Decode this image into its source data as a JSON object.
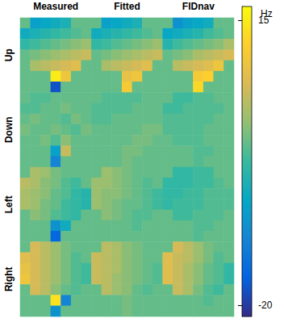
{
  "chart_data": {
    "type": "heatmap",
    "columns": [
      "Measured",
      "Fitted",
      "FIDnav"
    ],
    "rows": [
      "Up",
      "Down",
      "Left",
      "Right"
    ],
    "panels": [
      [
        [
          [
            0,
            -8,
            -7,
            -6,
            -5,
            0,
            0
          ],
          [
            -6,
            -5,
            -4,
            -3,
            -2,
            -1,
            0
          ],
          [
            -3,
            -2,
            -1,
            0,
            1,
            2,
            3
          ],
          [
            0,
            1,
            2,
            3,
            4,
            5,
            6
          ],
          [
            0,
            4,
            5,
            6,
            7,
            8,
            0
          ],
          [
            0,
            0,
            0,
            15,
            10,
            0,
            0
          ],
          [
            0,
            0,
            0,
            -18,
            0,
            0,
            0
          ]
        ],
        [
          [
            0,
            -8,
            -7,
            -6,
            -5,
            0,
            0
          ],
          [
            -6,
            -5,
            -4,
            -3,
            -2,
            -1,
            0
          ],
          [
            -3,
            -2,
            -1,
            0,
            1,
            2,
            3
          ],
          [
            0,
            1,
            2,
            3,
            4,
            5,
            6
          ],
          [
            0,
            4,
            5,
            6,
            7,
            8,
            0
          ],
          [
            0,
            0,
            0,
            9,
            10,
            0,
            0
          ],
          [
            0,
            0,
            0,
            11,
            0,
            0,
            0
          ]
        ],
        [
          [
            0,
            -10,
            -8,
            -7,
            -6,
            0,
            0
          ],
          [
            -7,
            -6,
            -5,
            -4,
            -2,
            -1,
            0
          ],
          [
            -4,
            -2,
            -1,
            0,
            1,
            2,
            4
          ],
          [
            0,
            1,
            2,
            4,
            5,
            6,
            7
          ],
          [
            0,
            5,
            6,
            7,
            8,
            10,
            0
          ],
          [
            0,
            0,
            0,
            11,
            12,
            0,
            0
          ],
          [
            0,
            0,
            0,
            13,
            0,
            0,
            0
          ]
        ]
      ],
      [
        [
          [
            0,
            -1,
            -1,
            0,
            0,
            0,
            0
          ],
          [
            -1,
            -1,
            0,
            0,
            1,
            0,
            0
          ],
          [
            0,
            1,
            0,
            0,
            -1,
            1,
            0
          ],
          [
            1,
            0,
            0,
            1,
            0,
            -1,
            1
          ],
          [
            0,
            0,
            1,
            -1,
            2,
            0,
            0
          ],
          [
            0,
            0,
            0,
            -8,
            6,
            0,
            0
          ],
          [
            0,
            0,
            0,
            -12,
            0,
            0,
            0
          ]
        ],
        [
          [
            0,
            -1,
            -1,
            -1,
            -1,
            0,
            0
          ],
          [
            -1,
            -1,
            -1,
            -1,
            0,
            0,
            0
          ],
          [
            -1,
            -1,
            0,
            0,
            0,
            0,
            0
          ],
          [
            0,
            0,
            0,
            0,
            0,
            1,
            1
          ],
          [
            0,
            0,
            0,
            0,
            1,
            1,
            0
          ],
          [
            0,
            0,
            0,
            1,
            1,
            0,
            0
          ],
          [
            0,
            0,
            0,
            1,
            0,
            0,
            0
          ]
        ],
        [
          [
            0,
            -2,
            -2,
            -1,
            -1,
            0,
            0
          ],
          [
            -2,
            -2,
            -1,
            -1,
            -1,
            -1,
            0
          ],
          [
            -1,
            -1,
            -1,
            -1,
            -1,
            0,
            0
          ],
          [
            -1,
            -1,
            -1,
            -1,
            0,
            0,
            0
          ],
          [
            0,
            -1,
            -1,
            -1,
            0,
            0,
            0
          ],
          [
            0,
            0,
            0,
            -1,
            -1,
            0,
            0
          ],
          [
            0,
            0,
            0,
            -1,
            0,
            0,
            0
          ]
        ]
      ],
      [
        [
          [
            0,
            4,
            3,
            1,
            0,
            0,
            0
          ],
          [
            5,
            4,
            2,
            1,
            -1,
            -2,
            0
          ],
          [
            4,
            3,
            2,
            0,
            -1,
            -3,
            -4
          ],
          [
            4,
            3,
            1,
            0,
            -2,
            -3,
            -4
          ],
          [
            0,
            2,
            1,
            -1,
            -2,
            -3,
            0
          ],
          [
            0,
            0,
            0,
            -10,
            -6,
            0,
            0
          ],
          [
            0,
            0,
            0,
            -16,
            0,
            0,
            0
          ]
        ],
        [
          [
            0,
            3,
            2,
            1,
            0,
            0,
            0
          ],
          [
            3,
            3,
            2,
            1,
            0,
            -1,
            0
          ],
          [
            3,
            2,
            2,
            1,
            0,
            -1,
            -2
          ],
          [
            3,
            2,
            1,
            0,
            0,
            -1,
            -2
          ],
          [
            0,
            2,
            1,
            0,
            -1,
            -1,
            0
          ],
          [
            0,
            0,
            0,
            0,
            -1,
            0,
            0
          ],
          [
            0,
            0,
            0,
            0,
            0,
            0,
            0
          ]
        ],
        [
          [
            0,
            -3,
            -3,
            -2,
            -2,
            0,
            0
          ],
          [
            -3,
            -3,
            -3,
            -2,
            -2,
            -1,
            0
          ],
          [
            -3,
            -3,
            -2,
            -2,
            -1,
            -1,
            -1
          ],
          [
            -3,
            -2,
            -2,
            -2,
            -1,
            -1,
            -1
          ],
          [
            0,
            -2,
            -2,
            -1,
            -1,
            -1,
            0
          ],
          [
            0,
            0,
            0,
            -1,
            -1,
            0,
            0
          ],
          [
            0,
            0,
            0,
            -1,
            0,
            0,
            0
          ]
        ]
      ],
      [
        [
          [
            0,
            7,
            5,
            3,
            1,
            0,
            0
          ],
          [
            8,
            7,
            5,
            3,
            1,
            -1,
            0
          ],
          [
            9,
            7,
            5,
            3,
            1,
            -1,
            -2
          ],
          [
            10,
            7,
            5,
            3,
            1,
            -1,
            -2
          ],
          [
            0,
            7,
            5,
            2,
            0,
            -1,
            0
          ],
          [
            0,
            0,
            0,
            14,
            -12,
            0,
            0
          ],
          [
            0,
            0,
            0,
            -10,
            0,
            0,
            0
          ]
        ],
        [
          [
            0,
            5,
            4,
            2,
            1,
            0,
            0
          ],
          [
            6,
            5,
            4,
            2,
            1,
            0,
            0
          ],
          [
            6,
            5,
            4,
            2,
            1,
            0,
            -1
          ],
          [
            6,
            5,
            3,
            2,
            1,
            0,
            -1
          ],
          [
            0,
            5,
            3,
            2,
            0,
            -1,
            0
          ],
          [
            0,
            0,
            0,
            1,
            0,
            0,
            0
          ],
          [
            0,
            0,
            0,
            1,
            0,
            0,
            0
          ]
        ],
        [
          [
            0,
            7,
            5,
            3,
            1,
            0,
            0
          ],
          [
            8,
            6,
            5,
            3,
            1,
            -1,
            0
          ],
          [
            8,
            6,
            4,
            2,
            0,
            -1,
            -3
          ],
          [
            8,
            6,
            4,
            2,
            0,
            -1,
            -3
          ],
          [
            0,
            6,
            4,
            1,
            -1,
            -2,
            0
          ],
          [
            0,
            0,
            0,
            0,
            -1,
            0,
            0
          ],
          [
            0,
            0,
            0,
            0,
            0,
            0,
            0
          ]
        ]
      ]
    ],
    "colorbar": {
      "range": [
        -21.4,
        16.7
      ],
      "ticks": [
        -20,
        15
      ],
      "label": "Hz"
    }
  }
}
